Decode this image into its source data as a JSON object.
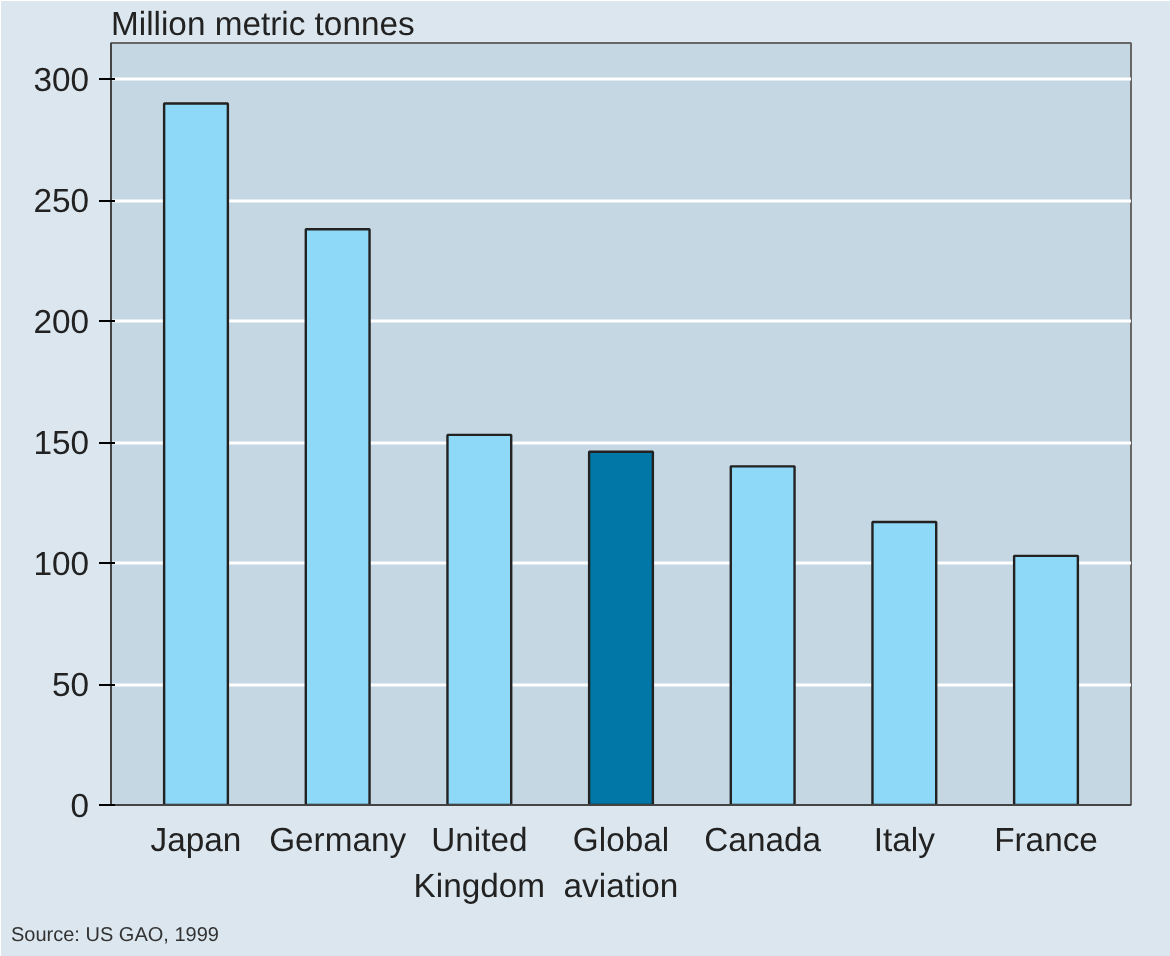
{
  "chart_data": {
    "type": "bar",
    "ylabel": "Million metric tonnes",
    "categories": [
      "Japan",
      "Germany",
      "United\nKingdom",
      "Global\naviation",
      "Canada",
      "Italy",
      "France"
    ],
    "values": [
      290,
      238,
      153,
      146,
      140,
      117,
      103
    ],
    "colors": [
      "#8ed8f8",
      "#8ed8f8",
      "#8ed8f8",
      "#0077a6",
      "#8ed8f8",
      "#8ed8f8",
      "#8ed8f8"
    ],
    "ylim": [
      0,
      315
    ],
    "yticks": [
      0,
      50,
      100,
      150,
      200,
      250,
      300
    ],
    "grid": "y",
    "annotations": [
      "Source: US GAO, 1999"
    ]
  }
}
